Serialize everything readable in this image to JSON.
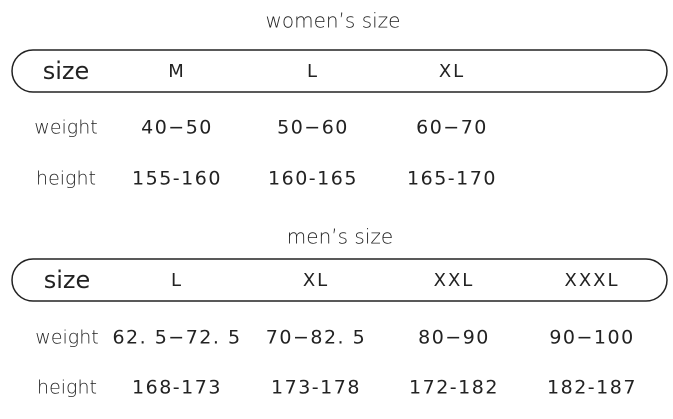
{
  "women": {
    "title": "women’s size",
    "header": [
      "size",
      "M",
      "L",
      "XL"
    ],
    "rows": [
      [
        "weight",
        "40−50",
        "50−60",
        "60−70"
      ],
      [
        "height",
        "155-160",
        "160-165",
        "165-170"
      ]
    ]
  },
  "men": {
    "title": "men’s size",
    "header": [
      "size",
      "L",
      "XL",
      "XXL",
      "XXXL"
    ],
    "rows": [
      [
        "weight",
        "62. 5−72. 5",
        "70−82. 5",
        "80−90",
        "90−100"
      ],
      [
        "height",
        "168-173",
        "173-178",
        "172-182",
        "182-187"
      ]
    ]
  }
}
